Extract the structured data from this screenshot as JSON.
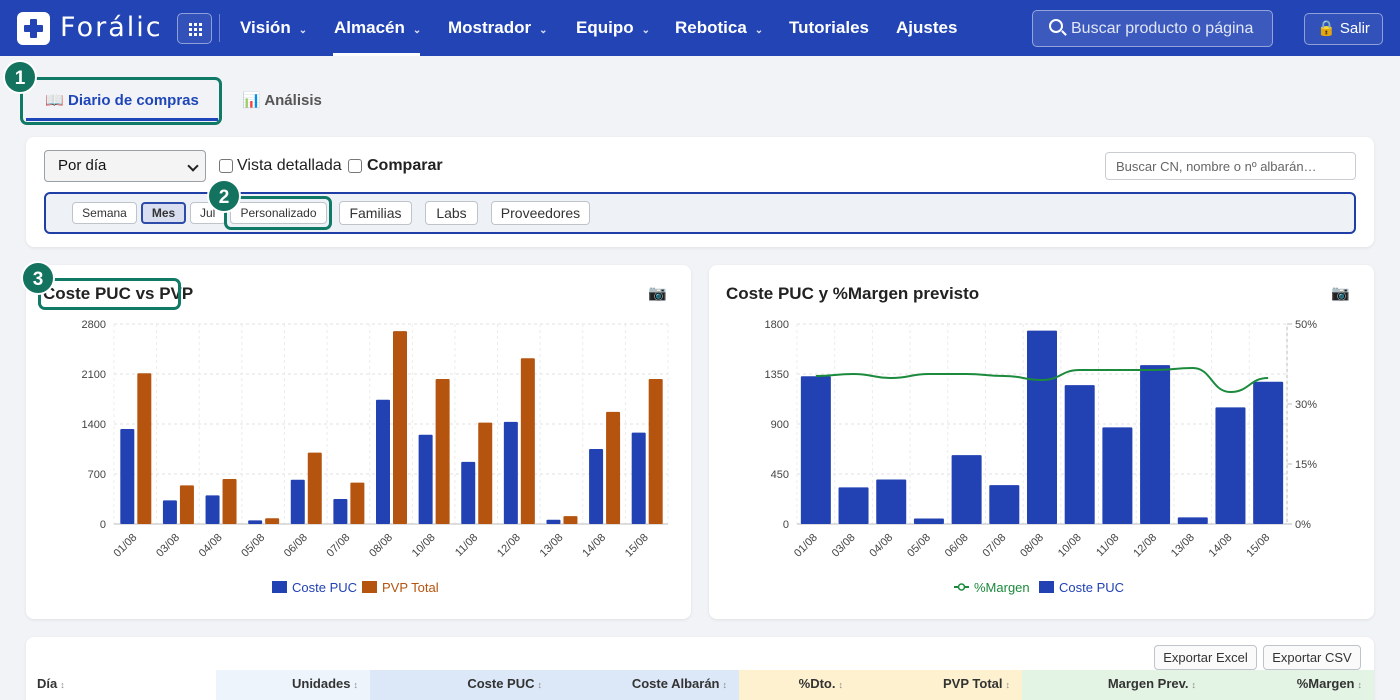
{
  "app": {
    "brand": "Forálic"
  },
  "nav": {
    "items": [
      {
        "label": "Visión",
        "chevron": true,
        "active": false
      },
      {
        "label": "Almacén",
        "chevron": true,
        "active": true
      },
      {
        "label": "Mostrador",
        "chevron": true,
        "active": false
      },
      {
        "label": "Equipo",
        "chevron": true,
        "active": false
      },
      {
        "label": "Rebotica",
        "chevron": true,
        "active": false
      },
      {
        "label": "Tutoriales",
        "chevron": false,
        "active": false
      },
      {
        "label": "Ajustes",
        "chevron": false,
        "active": false
      }
    ],
    "search_placeholder": "Buscar producto o página",
    "logout_label": "Salir"
  },
  "tabs": {
    "tab1_icon": "📖",
    "tab1_label": "Diario de compras",
    "tab2_icon": "📊",
    "tab2_label": "Análisis"
  },
  "steps": [
    "1",
    "2",
    "3"
  ],
  "filters": {
    "period_value": "Por día",
    "detailed_label": "Vista detallada",
    "compare_label": "Comparar",
    "search_placeholder": "Buscar CN, nombre o nº albarán…",
    "range_buttons": [
      "Semana",
      "Mes",
      "Jul",
      "Personalizado"
    ],
    "group_buttons": [
      "Familias",
      "Labs",
      "Proveedores"
    ]
  },
  "camera_icon": "📷",
  "chart_data": [
    {
      "type": "bar",
      "title": "Coste PUC vs PVP",
      "categories": [
        "01/08",
        "03/08",
        "04/08",
        "05/08",
        "06/08",
        "07/08",
        "08/08",
        "10/08",
        "11/08",
        "12/08",
        "13/08",
        "14/08",
        "15/08"
      ],
      "series": [
        {
          "name": "Coste PUC",
          "color": "#2241b3",
          "values": [
            1330,
            330,
            400,
            50,
            620,
            350,
            1740,
            1250,
            870,
            1430,
            60,
            1050,
            1280
          ]
        },
        {
          "name": "PVP Total",
          "color": "#b5540e",
          "values": [
            2110,
            540,
            630,
            80,
            1000,
            580,
            2700,
            2030,
            1420,
            2320,
            110,
            1570,
            2030
          ]
        }
      ],
      "yticks": [
        "0",
        "700",
        "1400",
        "2100",
        "2800"
      ],
      "ylim": [
        0,
        2800
      ],
      "grid": true,
      "legend": "bottom"
    },
    {
      "type": "bar+line",
      "title": "Coste PUC y %Margen previsto",
      "categories": [
        "01/08",
        "03/08",
        "04/08",
        "05/08",
        "06/08",
        "07/08",
        "08/08",
        "10/08",
        "11/08",
        "12/08",
        "13/08",
        "14/08",
        "15/08"
      ],
      "series": [
        {
          "name": "%Margen",
          "color": "#1b8a3c",
          "axis": "right",
          "values": [
            37,
            37.5,
            36.5,
            37.5,
            37.5,
            37,
            36,
            38.5,
            38.5,
            38.5,
            39,
            33,
            36.5
          ]
        },
        {
          "name": "Coste PUC",
          "color": "#2241b3",
          "axis": "left",
          "values": [
            1330,
            330,
            400,
            50,
            620,
            350,
            1740,
            1250,
            870,
            1430,
            60,
            1050,
            1280
          ]
        }
      ],
      "yticks_left": [
        "0",
        "450",
        "900",
        "1350",
        "1800"
      ],
      "ylim_left": [
        0,
        1800
      ],
      "yticks_right": [
        "0%",
        "15%",
        "30%",
        "50%"
      ],
      "ylim_right": [
        0,
        50
      ],
      "grid": true,
      "legend": "bottom"
    }
  ],
  "table": {
    "export_excel": "Exportar Excel",
    "export_csv": "Exportar CSV",
    "sort_icon": "↕",
    "columns": [
      {
        "label": "Día",
        "bg": "#ffffff"
      },
      {
        "label": "Unidades",
        "bg": "#eef4fb"
      },
      {
        "label": "Coste PUC",
        "bg": "#dce8f7"
      },
      {
        "label": "Coste Albarán",
        "bg": "#dce8f7"
      },
      {
        "label": "%Dto.",
        "bg": "#fdf1cf"
      },
      {
        "label": "PVP Total",
        "bg": "#fdf1cf"
      },
      {
        "label": "Margen Prev.",
        "bg": "#e3f3e4"
      },
      {
        "label": "%Margen",
        "bg": "#e3f3e4"
      }
    ]
  }
}
